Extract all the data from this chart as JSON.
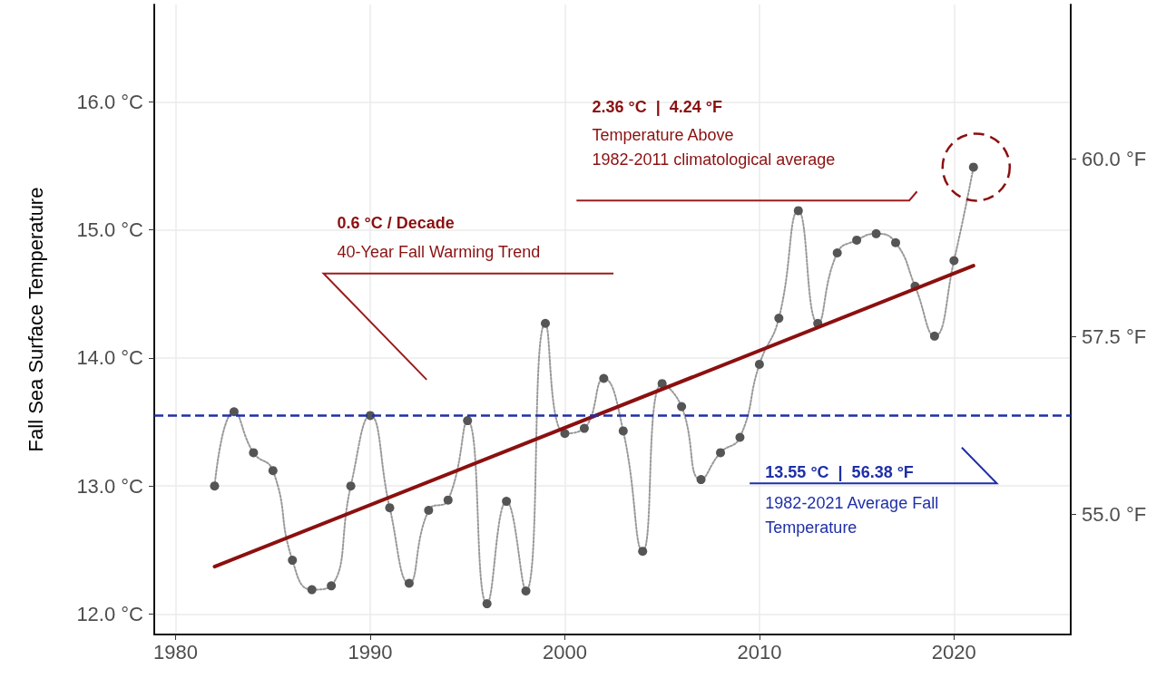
{
  "chart_data": {
    "type": "line",
    "ylabel": "Fall Sea Surface Temperature",
    "x": [
      1982,
      1983,
      1984,
      1985,
      1986,
      1987,
      1988,
      1989,
      1990,
      1991,
      1992,
      1993,
      1994,
      1995,
      1996,
      1997,
      1998,
      1999,
      2000,
      2001,
      2002,
      2003,
      2004,
      2005,
      2006,
      2007,
      2008,
      2009,
      2010,
      2011,
      2012,
      2013,
      2014,
      2015,
      2016,
      2017,
      2018,
      2019,
      2020,
      2021
    ],
    "series": [
      {
        "color": "#555555",
        "marker": "circle",
        "line_style": "dotted",
        "values": [
          13.0,
          13.58,
          13.26,
          13.12,
          12.42,
          12.19,
          12.22,
          13.0,
          13.55,
          12.83,
          12.24,
          12.81,
          12.89,
          13.51,
          12.08,
          12.88,
          12.18,
          14.27,
          13.41,
          13.45,
          13.84,
          13.43,
          12.49,
          13.8,
          13.62,
          13.05,
          13.26,
          13.38,
          13.95,
          14.31,
          15.15,
          14.27,
          14.82,
          14.92,
          14.97,
          14.9,
          14.56,
          14.17,
          14.76,
          15.49
        ]
      },
      {
        "type": "line",
        "color": "#8b1010",
        "marker": "none",
        "line_style": "solid",
        "x": [
          1982,
          2021
        ],
        "values": [
          12.37,
          14.72
        ]
      }
    ],
    "xlim": [
      1978.9,
      2026
    ],
    "xticks": [
      1980,
      1990,
      2000,
      2010,
      2020
    ],
    "ylim": [
      11.84,
      16.76
    ],
    "yticks": [
      {
        "value": 12,
        "label": "12.0 °C"
      },
      {
        "value": 13,
        "label": "13.0 °C"
      },
      {
        "value": 14,
        "label": "14.0 °C"
      },
      {
        "value": 15,
        "label": "15.0 °C"
      },
      {
        "value": 16,
        "label": "16.0 °C"
      }
    ],
    "y2lim": [
      53.31,
      62.17
    ],
    "y2ticks": [
      {
        "value": 55,
        "label": "55.0 °F"
      },
      {
        "value": 57.5,
        "label": "57.5 °F"
      },
      {
        "value": 60,
        "label": "60.0 °F"
      }
    ],
    "ref_lines": [
      {
        "axis": "y",
        "value": 13.55,
        "color": "#1f2fa8",
        "line_style": "dashed"
      }
    ],
    "annotations": [
      "0.6 °C / Decade",
      "40-Year Fall Warming Trend",
      "2.36 °C  |  4.24 °F",
      "Temperature Above",
      "1982-2011 climatological average",
      "13.55 °C  |  56.38 °F",
      "1982-2021 Average Fall",
      "Temperature"
    ],
    "grid": true
  }
}
